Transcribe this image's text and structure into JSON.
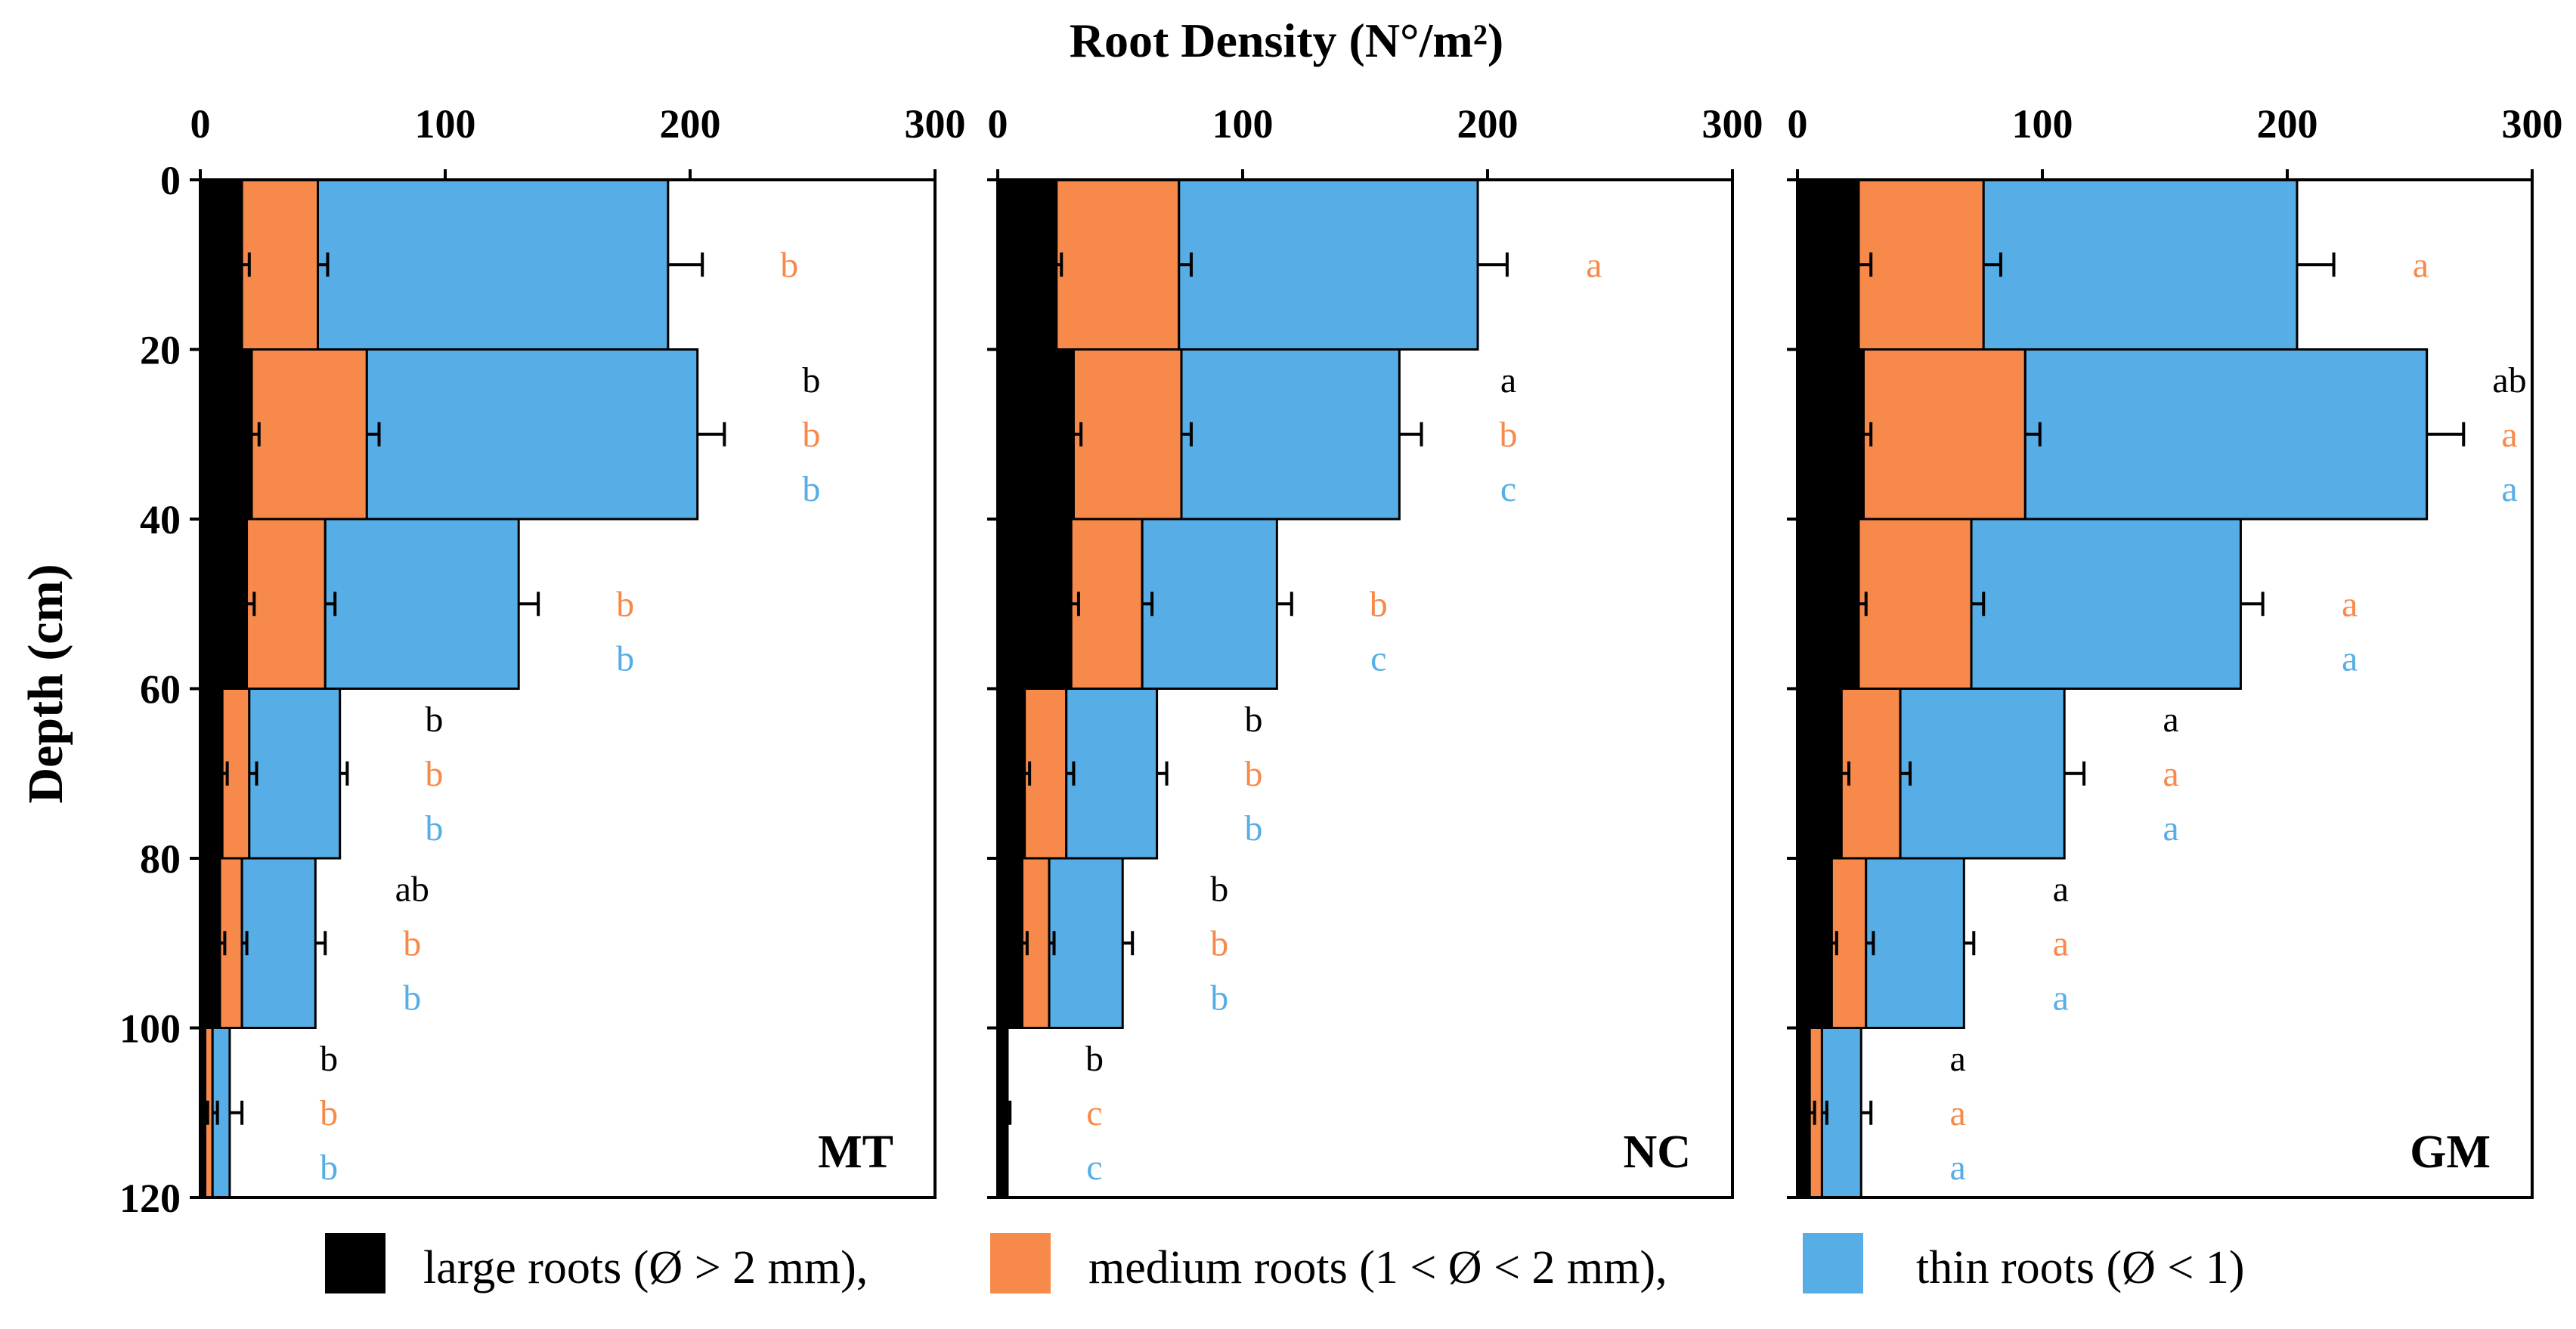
{
  "chart_data": {
    "type": "bar",
    "orientation": "horizontal-stacked",
    "title": "Root Density (N°/m²)",
    "xlabel": "Root Density (N°/m²)",
    "ylabel": "Depth (cm)",
    "xlim": [
      0,
      300
    ],
    "ylim": [
      0,
      120
    ],
    "x_ticks": [
      "0",
      "100",
      "200",
      "300"
    ],
    "y_ticks": [
      "0",
      "20",
      "40",
      "60",
      "80",
      "100",
      "120"
    ],
    "depth_layers": [
      "0-20",
      "20-40",
      "40-60",
      "60-80",
      "80-100",
      "100-120"
    ],
    "colors": {
      "large": "#000000",
      "medium": "#f78a4b",
      "thin": "#57aee6"
    },
    "legend": [
      {
        "key": "large",
        "label": "large roots (Ø > 2 mm),"
      },
      {
        "key": "medium",
        "label": "medium roots (1 < Ø < 2 mm),"
      },
      {
        "key": "thin",
        "label": "thin roots (Ø < 1)"
      }
    ],
    "panels": [
      {
        "name": "MT",
        "large": [
          17,
          21,
          19,
          9,
          8,
          2
        ],
        "medium": [
          31,
          47,
          32,
          11,
          9,
          3
        ],
        "thin": [
          143,
          135,
          79,
          37,
          30,
          7
        ],
        "err_large": [
          3,
          3,
          3,
          2,
          2,
          1
        ],
        "err_medium": [
          4,
          5,
          4,
          3,
          2,
          2
        ],
        "err_thin": [
          14,
          11,
          8,
          3,
          4,
          5
        ],
        "sig_large": [
          "",
          "b",
          "",
          "b",
          "ab",
          "b"
        ],
        "sig_medium": [
          "b",
          "b",
          "b",
          "b",
          "b",
          "b"
        ],
        "sig_thin": [
          "",
          "b",
          "b",
          "b",
          "b",
          "b"
        ]
      },
      {
        "name": "NC",
        "large": [
          24,
          31,
          30,
          11,
          10,
          4
        ],
        "medium": [
          50,
          44,
          29,
          17,
          11,
          0
        ],
        "thin": [
          122,
          89,
          55,
          37,
          30,
          0
        ],
        "err_large": [
          2,
          3,
          3,
          2,
          2,
          1
        ],
        "err_medium": [
          5,
          4,
          4,
          3,
          2,
          0
        ],
        "err_thin": [
          12,
          9,
          6,
          4,
          4,
          0
        ],
        "sig_large": [
          "",
          "a",
          "",
          "b",
          "b",
          "b"
        ],
        "sig_medium": [
          "a",
          "b",
          "b",
          "b",
          "b",
          "c"
        ],
        "sig_thin": [
          "",
          "c",
          "c",
          "b",
          "b",
          "c"
        ]
      },
      {
        "name": "GM",
        "large": [
          25,
          27,
          25,
          18,
          14,
          5
        ],
        "medium": [
          51,
          66,
          46,
          24,
          14,
          5
        ],
        "thin": [
          128,
          164,
          110,
          67,
          40,
          16
        ],
        "err_large": [
          5,
          3,
          3,
          3,
          2,
          2
        ],
        "err_medium": [
          7,
          6,
          5,
          4,
          3,
          2
        ],
        "err_thin": [
          15,
          15,
          9,
          8,
          4,
          4
        ],
        "sig_large": [
          "",
          "ab",
          "",
          "a",
          "a",
          "a"
        ],
        "sig_medium": [
          "a",
          "a",
          "a",
          "a",
          "a",
          "a"
        ],
        "sig_thin": [
          "",
          "a",
          "a",
          "a",
          "a",
          "a"
        ]
      }
    ]
  }
}
